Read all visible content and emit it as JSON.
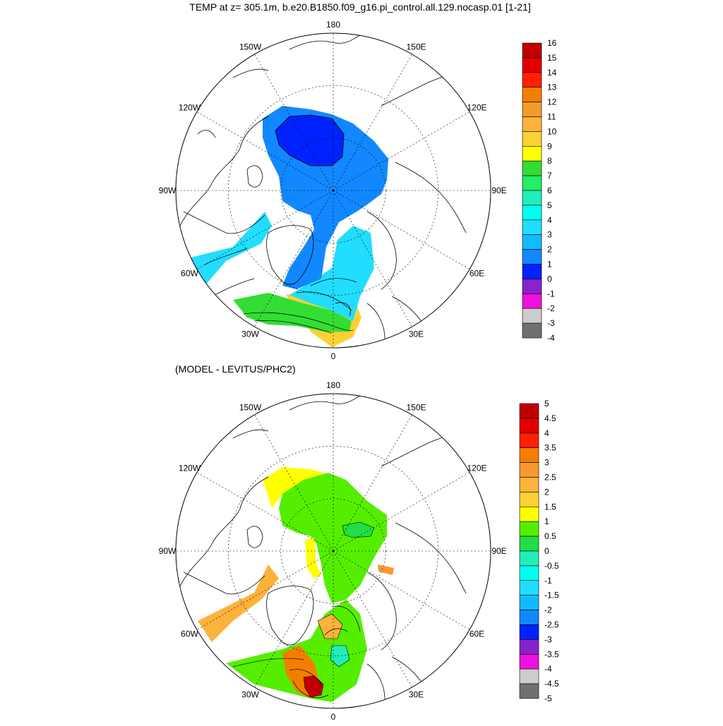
{
  "title": "TEMP at z= 305.1m, b.e20.B1850.f09_g16.pi_control.all.129.nocasp.01 [1-21]",
  "subtitle": "(MODEL - LEVITUS/PHC2)",
  "longitude_labels": [
    {
      "text": "180",
      "lon": 180
    },
    {
      "text": "150E",
      "lon": 150
    },
    {
      "text": "120E",
      "lon": 120
    },
    {
      "text": "90E",
      "lon": 90
    },
    {
      "text": "60E",
      "lon": 60
    },
    {
      "text": "30E",
      "lon": 30
    },
    {
      "text": "0",
      "lon": 0
    },
    {
      "text": "30W",
      "lon": -30
    },
    {
      "text": "60W",
      "lon": -60
    },
    {
      "text": "90W",
      "lon": -90
    },
    {
      "text": "120W",
      "lon": -120
    },
    {
      "text": "150W",
      "lon": -150
    }
  ],
  "colorbar1": {
    "labels": [
      "16",
      "15",
      "14",
      "13",
      "12",
      "11",
      "10",
      "9",
      "8",
      "7",
      "6",
      "5",
      "4",
      "3",
      "2",
      "1",
      "0",
      "-1",
      "-2",
      "-3",
      "-4"
    ],
    "colors": [
      "#c00000",
      "#e00000",
      "#ff2000",
      "#f47e00",
      "#f79a2e",
      "#fdb23b",
      "#fdd133",
      "#ffff00",
      "#33dd33",
      "#22ee66",
      "#22eebb",
      "#00ffee",
      "#22ddff",
      "#11bbff",
      "#1188ff",
      "#0022ff",
      "#8822cc",
      "#ee11dd",
      "#cccccc",
      "#707070"
    ]
  },
  "colorbar2": {
    "labels": [
      "5",
      "4.5",
      "4",
      "3.5",
      "3",
      "2.5",
      "2",
      "1.5",
      "1",
      "0.5",
      "0",
      "-0.5",
      "-1",
      "-1.5",
      "-2",
      "-2.5",
      "-3",
      "-3.5",
      "-4",
      "-4.5",
      "-5"
    ],
    "colors": [
      "#c00000",
      "#e00000",
      "#ff2000",
      "#f47e00",
      "#f79a2e",
      "#fdb23b",
      "#fdd133",
      "#ffff00",
      "#55ee00",
      "#22dd44",
      "#22eebb",
      "#00ffee",
      "#22ddff",
      "#11bbff",
      "#1188ff",
      "#0022ff",
      "#8822cc",
      "#ee11dd",
      "#cccccc",
      "#707070"
    ]
  }
}
